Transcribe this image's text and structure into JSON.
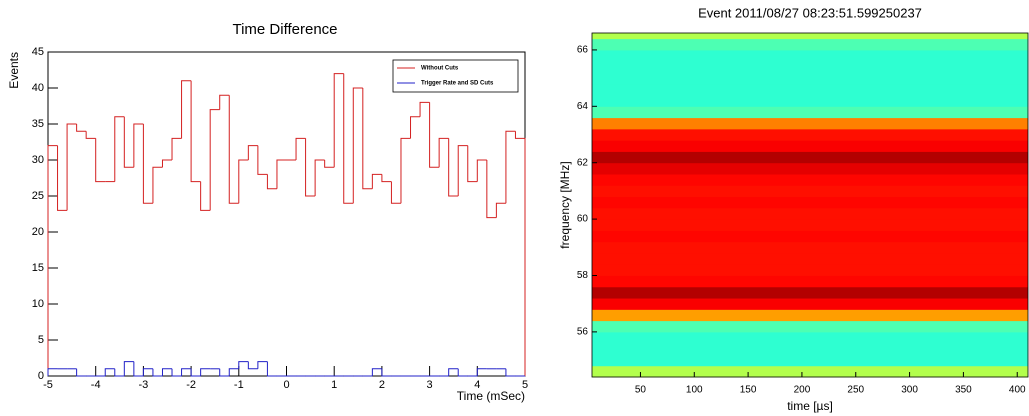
{
  "chart_data": [
    {
      "type": "histogram",
      "title": "Time Difference",
      "x_label": "Time (mSec)",
      "y_label": "Events",
      "xlim": [
        -5,
        5
      ],
      "ylim": [
        0,
        45
      ],
      "xticks": [
        -5,
        -4,
        -3,
        -2,
        -1,
        0,
        1,
        2,
        3,
        4,
        5
      ],
      "yticks": [
        0,
        5,
        10,
        15,
        20,
        25,
        30,
        35,
        40,
        45
      ],
      "bins": [
        -5,
        -4.8,
        -4.6,
        -4.4,
        -4.2,
        -4,
        -3.8,
        -3.6,
        -3.4,
        -3.2,
        -3,
        -2.8,
        -2.6,
        -2.4,
        -2.2,
        -2,
        -1.8,
        -1.6,
        -1.4,
        -1.2,
        -1,
        -0.8,
        -0.6,
        -0.4,
        -0.2,
        0,
        0.2,
        0.4,
        0.6,
        0.8,
        1,
        1.2,
        1.4,
        1.6,
        1.8,
        2,
        2.2,
        2.4,
        2.6,
        2.8,
        3,
        3.2,
        3.4,
        3.6,
        3.8,
        4,
        4.2,
        4.4,
        4.6,
        4.8,
        5
      ],
      "legend": "upper right",
      "series": [
        {
          "name": "Without Cuts",
          "color": "#d42020",
          "values": [
            32,
            23,
            35,
            34,
            33,
            27,
            27,
            36,
            29,
            35,
            24,
            29,
            30,
            33,
            41,
            27,
            23,
            37,
            39,
            24,
            30,
            32,
            28,
            26,
            30,
            30,
            33,
            25,
            30,
            29,
            42,
            24,
            40,
            26,
            28,
            27,
            24,
            33,
            36,
            38,
            29,
            33,
            25,
            32,
            27,
            30,
            22,
            24,
            34,
            33
          ]
        },
        {
          "name": "Trigger Rate and SD Cuts",
          "color": "#2020c8",
          "values": [
            1,
            1,
            1,
            0,
            0,
            0,
            1,
            0,
            2,
            0,
            1,
            0,
            1,
            0,
            1,
            0,
            1,
            1,
            0,
            1,
            2,
            1,
            2,
            0,
            0,
            0,
            0,
            0,
            0,
            0,
            0,
            0,
            0,
            0,
            1,
            0,
            0,
            0,
            0,
            0,
            0,
            0,
            1,
            0,
            0,
            1,
            1,
            1,
            0,
            0
          ]
        }
      ]
    },
    {
      "type": "heatmap",
      "title": "Event 2011/08/27 08:23:51.599250237",
      "x_label": "time [µs]",
      "y_label": "frequency [MHz]",
      "xlim": [
        5,
        410
      ],
      "ylim": [
        54.4,
        66.6
      ],
      "xticks": [
        50,
        100,
        150,
        200,
        250,
        300,
        350,
        400
      ],
      "yticks": [
        56,
        58,
        60,
        62,
        64,
        66
      ],
      "y_bins": [
        54.4,
        54.8,
        55.2,
        55.6,
        56.0,
        56.4,
        56.8,
        57.2,
        57.6,
        58.0,
        58.4,
        58.8,
        59.2,
        59.6,
        60.0,
        60.4,
        60.8,
        61.2,
        61.6,
        62.0,
        62.4,
        62.8,
        63.2,
        63.6,
        64.0,
        64.4,
        64.8,
        65.2,
        65.6,
        66.0,
        66.4,
        66.6
      ],
      "values": [
        0.55,
        0.42,
        0.42,
        0.42,
        0.45,
        0.72,
        0.88,
        0.95,
        0.87,
        0.86,
        0.86,
        0.86,
        0.87,
        0.86,
        0.86,
        0.87,
        0.86,
        0.87,
        0.9,
        0.95,
        0.88,
        0.86,
        0.75,
        0.45,
        0.42,
        0.42,
        0.42,
        0.42,
        0.42,
        0.45,
        0.55
      ],
      "colormap": "jet"
    }
  ]
}
